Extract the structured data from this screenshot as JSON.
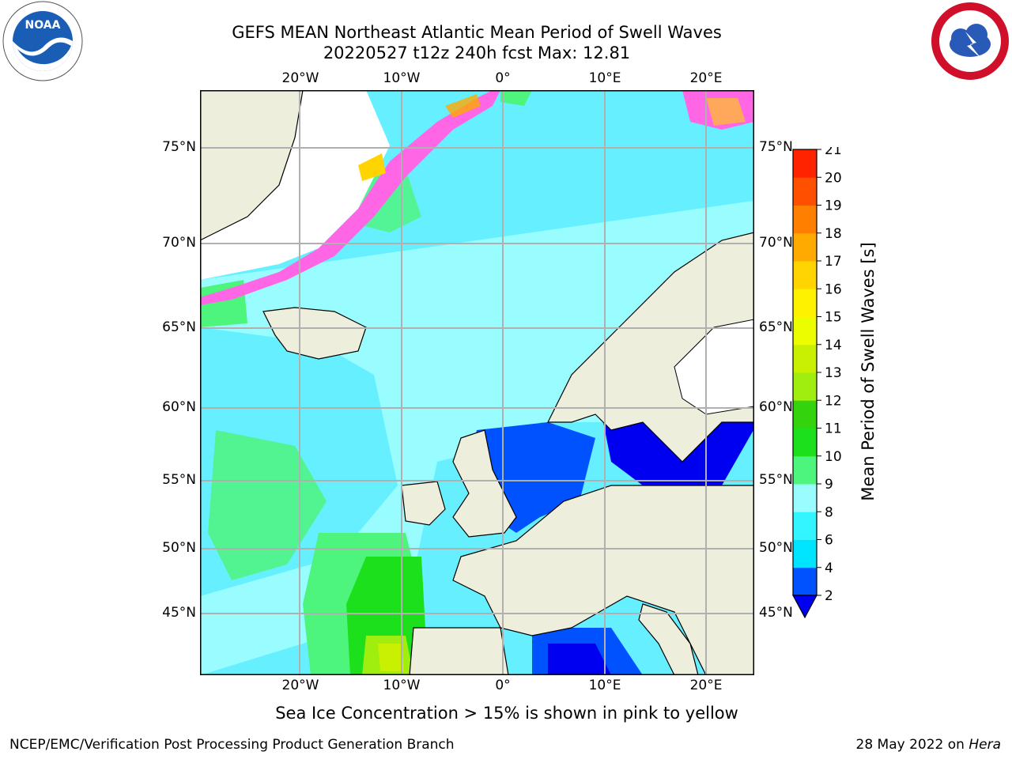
{
  "title_line1": "GEFS MEAN Northeast Atlantic Mean Period of Swell Waves",
  "title_line2": "20220527 t12z 240h fcst   Max: 12.81",
  "lat_labels": [
    "75°N",
    "70°N",
    "65°N",
    "60°N",
    "55°N",
    "50°N",
    "45°N"
  ],
  "lon_labels": [
    "20°W",
    "10°W",
    "0°",
    "10°E",
    "20°E"
  ],
  "colorbar": {
    "label": "Mean Period of Swell Waves [s]",
    "ticks": [
      "2",
      "4",
      "6",
      "8",
      "9",
      "10",
      "11",
      "12",
      "13",
      "14",
      "15",
      "16",
      "17",
      "18",
      "19",
      "20",
      "21"
    ],
    "colors": [
      "#0052ff",
      "#00e5ff",
      "#33f5ff",
      "#99fdff",
      "#4ef57c",
      "#1de01d",
      "#33d40e",
      "#a0ee10",
      "#c9f000",
      "#ecfd00",
      "#fff200",
      "#ffd400",
      "#ffaa00",
      "#ff8000",
      "#ff5000",
      "#ff2400"
    ],
    "under_color": "#0000f0"
  },
  "footer_note": "Sea Ice Concentration > 15% is shown in pink to yellow",
  "credit": "NCEP/EMC/Verification Post Processing Product Generation Branch",
  "date_prefix": "28 May 2022 on ",
  "date_host": "Hera",
  "logos": {
    "left": "noaa-logo",
    "right": "nws-logo",
    "left_text": "NOAA"
  }
}
